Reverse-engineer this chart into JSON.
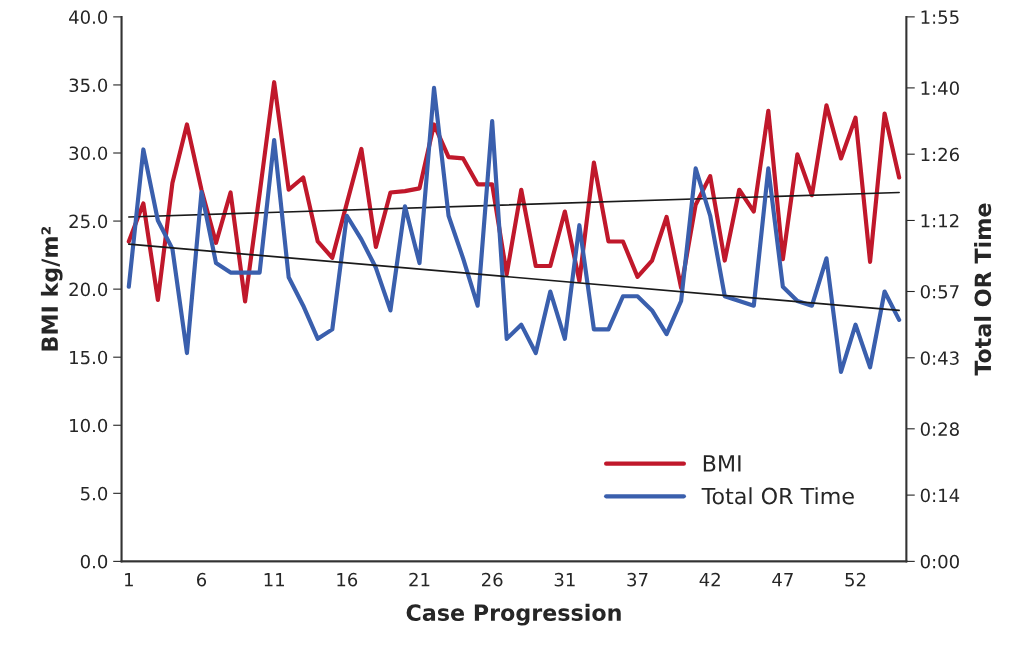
{
  "chart_data": {
    "type": "line",
    "xlabel": "Case Progression",
    "ylabel": "BMI kg/m²",
    "y2label": "Total OR Time",
    "categories": [
      "1",
      null,
      null,
      null,
      null,
      "6",
      null,
      null,
      null,
      null,
      "11",
      null,
      null,
      null,
      null,
      "16",
      null,
      null,
      null,
      null,
      "21",
      null,
      null,
      null,
      null,
      "26",
      null,
      null,
      null,
      null,
      "31",
      null,
      null,
      null,
      null,
      "37",
      null,
      null,
      null,
      null,
      "42",
      null,
      null,
      null,
      null,
      "47",
      null,
      null,
      null,
      null,
      "52",
      null,
      null,
      null
    ],
    "ylim": [
      0,
      40
    ],
    "yticks": [
      {
        "value": 0,
        "label": "0.0"
      },
      {
        "value": 5,
        "label": "5.0"
      },
      {
        "value": 10,
        "label": "10.0"
      },
      {
        "value": 15,
        "label": "15.0"
      },
      {
        "value": 20,
        "label": "20.0"
      },
      {
        "value": 25,
        "label": "25.0"
      },
      {
        "value": 30,
        "label": "30.0"
      },
      {
        "value": 35,
        "label": "35.0"
      },
      {
        "value": 40,
        "label": "40.0"
      }
    ],
    "y2lim": [
      0,
      115
    ],
    "y2ticks": [
      {
        "value": 0,
        "label": "0:00"
      },
      {
        "value": 14,
        "label": "0:14"
      },
      {
        "value": 28,
        "label": "0:28"
      },
      {
        "value": 43,
        "label": "0:43"
      },
      {
        "value": 57,
        "label": "0:57"
      },
      {
        "value": 72,
        "label": "1:12"
      },
      {
        "value": 86,
        "label": "1:26"
      },
      {
        "value": 100,
        "label": "1:40"
      },
      {
        "value": 115,
        "label": "1:55"
      }
    ],
    "series": [
      {
        "name": "BMI",
        "color": "#c0182b",
        "values": [
          23.5,
          26.3,
          19.2,
          27.8,
          32.1,
          27.3,
          23.4,
          27.1,
          19.1,
          27.0,
          35.2,
          27.3,
          28.2,
          23.5,
          22.3,
          26.3,
          30.3,
          23.1,
          27.1,
          27.2,
          27.4,
          32.1,
          29.7,
          29.6,
          27.7,
          27.7,
          21.1,
          27.3,
          21.7,
          21.7,
          25.7,
          20.6,
          29.3,
          23.5,
          23.5,
          20.9,
          22.1,
          25.3,
          20.1,
          26.2,
          28.3,
          22.1,
          27.3,
          25.7,
          33.1,
          22.2,
          29.9,
          26.9,
          33.5,
          29.6,
          32.6,
          22.0,
          32.9,
          28.2
        ]
      },
      {
        "name": "Total OR Time",
        "color": "#3a5fad",
        "axis": "y2",
        "values": [
          58,
          87,
          72,
          66,
          44,
          78,
          63,
          61,
          61,
          61,
          89,
          60,
          54,
          47,
          49,
          73,
          68,
          62,
          53,
          75,
          63,
          100,
          73,
          64,
          54,
          93,
          47,
          50,
          44,
          57,
          47,
          71,
          49,
          49,
          56,
          56,
          53,
          48,
          55,
          83,
          73,
          56,
          55,
          54,
          83,
          58,
          55,
          54,
          64,
          40,
          50,
          41,
          57,
          51
        ]
      },
      {
        "type": "line",
        "color": "#1a1a1a",
        "values": [
          25.3,
          null,
          null,
          null,
          null,
          null,
          null,
          null,
          null,
          null,
          null,
          null,
          null,
          null,
          null,
          null,
          null,
          null,
          null,
          null,
          null,
          null,
          null,
          null,
          null,
          null,
          null,
          null,
          null,
          null,
          null,
          null,
          null,
          null,
          null,
          null,
          null,
          null,
          null,
          null,
          null,
          null,
          null,
          null,
          null,
          null,
          null,
          null,
          null,
          null,
          null,
          null,
          null,
          27.1
        ]
      },
      {
        "type": "line",
        "color": "#1a1a1a",
        "axis": "y2",
        "values": [
          67,
          null,
          null,
          null,
          null,
          null,
          null,
          null,
          null,
          null,
          null,
          null,
          null,
          null,
          null,
          null,
          null,
          null,
          null,
          null,
          null,
          null,
          null,
          null,
          null,
          null,
          null,
          null,
          null,
          null,
          null,
          null,
          null,
          null,
          null,
          null,
          null,
          null,
          null,
          null,
          null,
          null,
          null,
          null,
          null,
          null,
          null,
          null,
          null,
          null,
          null,
          null,
          null,
          53
        ]
      }
    ],
    "legend": "bottom right",
    "grid": false
  }
}
